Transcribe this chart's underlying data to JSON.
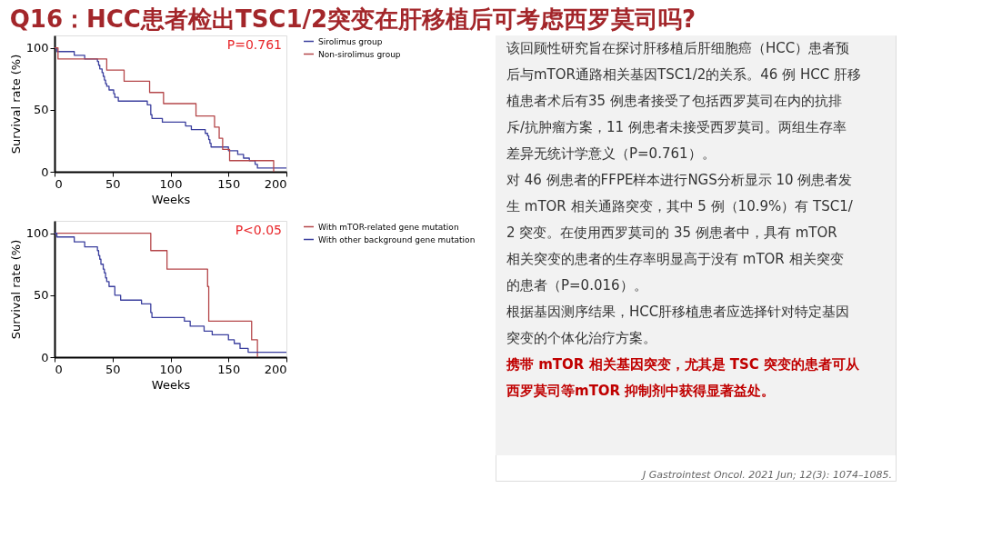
{
  "chart_data": [
    {
      "type": "step",
      "title": "Q16：HCC患者检出TSC1/2突变在肝移植后可考虑西罗莫司吗?",
      "xlabel": "Weeks",
      "ylabel": "Survival rate (%)",
      "xlim": [
        0,
        200
      ],
      "xticks": [
        0,
        50,
        100,
        150,
        200
      ],
      "ylim": [
        0,
        110
      ],
      "yticks": [
        0,
        50,
        100
      ],
      "grid": false,
      "legend": "top right",
      "marker": "none",
      "line_style": "solid",
      "annotations": [
        "P=0.761"
      ],
      "series": [
        {
          "name": "Sirolimus group",
          "color": "#3b3f9e",
          "x": [
            0,
            2,
            17,
            26,
            37,
            38,
            39,
            41,
            42,
            43,
            44,
            45,
            47,
            51,
            52,
            55,
            80,
            83,
            84,
            93,
            113,
            118,
            130,
            132,
            133,
            134,
            135,
            150,
            158,
            163,
            168,
            173,
            175,
            200
          ],
          "values": [
            100,
            97,
            94,
            91,
            89,
            86,
            83,
            80,
            77,
            74,
            71,
            69,
            66,
            63,
            60,
            57,
            54,
            46,
            43,
            40,
            37,
            34,
            31,
            29,
            26,
            23,
            20,
            17,
            14,
            11,
            9,
            6,
            3,
            3
          ]
        },
        {
          "name": "Non-sirolimus group",
          "color": "#b5474a",
          "x": [
            0,
            3,
            45,
            60,
            82,
            94,
            122,
            138,
            142,
            145,
            151,
            189
          ],
          "values": [
            100,
            91,
            82,
            73,
            64,
            55,
            45,
            36,
            27,
            18,
            9,
            0
          ]
        }
      ]
    },
    {
      "type": "step",
      "xlabel": "Weeks",
      "ylabel": "Survival rate (%)",
      "xlim": [
        0,
        200
      ],
      "xticks": [
        0,
        50,
        100,
        150,
        200
      ],
      "ylim": [
        0,
        110
      ],
      "yticks": [
        0,
        50,
        100
      ],
      "grid": false,
      "legend": "top right",
      "marker": "none",
      "line_style": "solid",
      "annotations": [
        "P<0.05"
      ],
      "series": [
        {
          "name": "With mTOR-related gene mutation",
          "color": "#b5474a",
          "x": [
            0,
            83,
            97,
            132,
            133,
            170,
            175
          ],
          "values": [
            100,
            86,
            71,
            57,
            29,
            14,
            0
          ]
        },
        {
          "name": "With other background gene mutation",
          "color": "#3b3f9e",
          "x": [
            0,
            2,
            17,
            26,
            37,
            38,
            39,
            40,
            42,
            43,
            44,
            45,
            47,
            52,
            57,
            75,
            83,
            84,
            112,
            117,
            129,
            136,
            150,
            155,
            160,
            167,
            200
          ],
          "values": [
            100,
            97,
            93,
            89,
            86,
            82,
            79,
            75,
            71,
            68,
            64,
            61,
            57,
            50,
            46,
            43,
            36,
            32,
            29,
            25,
            21,
            18,
            14,
            11,
            7,
            4,
            4
          ]
        }
      ]
    },
    {
      "type": "other",
      "annotations": [
        "该回顾性研究旨在探讨肝移植后肝细胞癌（HCC）患者预后与mTOR通路相关基因TSC1/2的关系。46 例 HCC 肝移植患者术后有35 例患者接受了包括西罗莫司在内的抗排斥/抗肿瘤方案，11 例患者未接受西罗莫司。两组生存率差异无统计学意义（P=0.761）。",
        "对 46 例患者的FFPE样本进行NGS分析显示 10 例患者发生 mTOR 相关通路突变，其中 5 例（10.9%）有 TSC1/2 突变。在使用西罗莫司的 35 例患者中，具有 mTOR 相关突变的患者的生存率明显高于没有 mTOR 相关突变的患者（P=0.016）。",
        "根据基因测序结果，HCC肝移植患者应选择针对特定基因突变的个体化治疗方案。",
        "携带 mTOR 相关基因突变，尤其是 TSC 突变的患者可从西罗莫司等mTOR 抑制剂中获得显著益处。",
        "J Gastrointest Oncol. 2021 Jun; 12(3): 1074–1085."
      ],
      "colors": [
        "#333333",
        "#333333",
        "#333333",
        "#c00000",
        "#666666"
      ]
    }
  ]
}
